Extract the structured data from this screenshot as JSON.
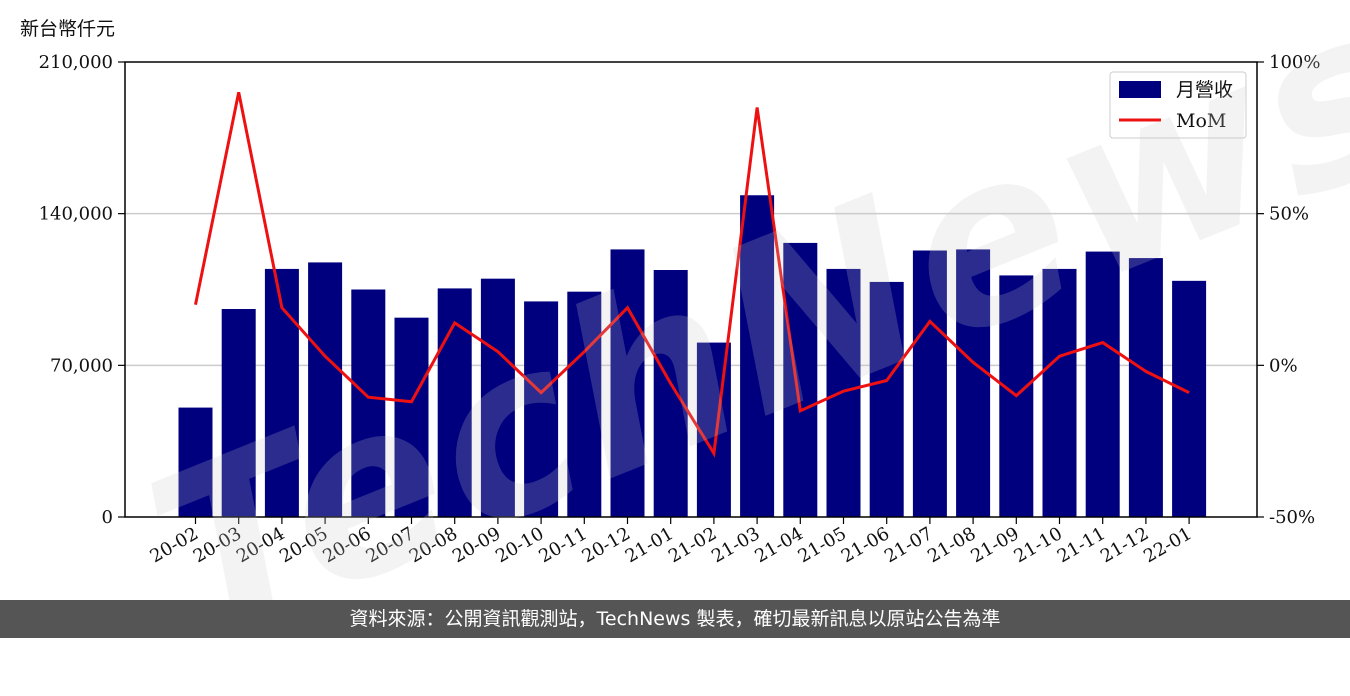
{
  "chart_data": {
    "type": "bar",
    "categories": [
      "20-02",
      "20-03",
      "20-04",
      "20-05",
      "20-06",
      "20-07",
      "20-08",
      "20-09",
      "20-10",
      "20-11",
      "20-12",
      "21-01",
      "21-02",
      "21-03",
      "21-04",
      "21-05",
      "21-06",
      "21-07",
      "21-08",
      "21-09",
      "21-10",
      "21-11",
      "21-12",
      "22-01"
    ],
    "series": [
      {
        "name": "月營收",
        "type": "bar",
        "axis": "left",
        "color": "#00007f",
        "values": [
          50500,
          96000,
          114500,
          117500,
          105000,
          92000,
          105500,
          110000,
          99500,
          104000,
          123500,
          114000,
          80500,
          148500,
          126500,
          114500,
          108500,
          123000,
          123500,
          111500,
          114500,
          122500,
          119500,
          109000
        ]
      },
      {
        "name": "MoM",
        "type": "line",
        "axis": "right",
        "color": "#ee1111",
        "values": [
          20,
          90,
          19,
          3,
          -10.5,
          -12,
          14,
          4.5,
          -9,
          4.5,
          19,
          -6,
          -29,
          85,
          -15,
          -8.5,
          -5,
          14.5,
          1,
          -10,
          3,
          7.5,
          -2,
          -9
        ]
      }
    ],
    "y_left": {
      "label": "新台幣仟元",
      "ylim": [
        0,
        210000
      ],
      "ticks": [
        "0",
        "70,000",
        "140,000",
        "210,000"
      ]
    },
    "y_right": {
      "ylim": [
        -50,
        100
      ],
      "ticks": [
        "-50%",
        "0%",
        "50%",
        "100%"
      ]
    },
    "grid": true,
    "legend": "top-right"
  },
  "watermark": "TechNews",
  "footer": "資料來源：公開資訊觀測站，TechNews 製表，確切最新訊息以原站公告為準"
}
